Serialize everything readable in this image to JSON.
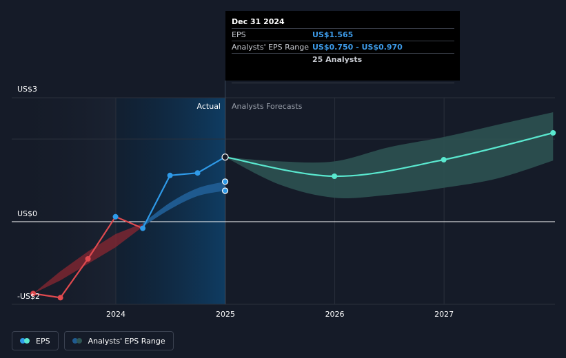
{
  "chart_data": {
    "type": "line",
    "y_axis": {
      "top_label": "US$3",
      "zero_label": "US$0",
      "bottom_label": "-US$2",
      "ylim": [
        -2,
        3
      ]
    },
    "x_ticks": [
      "2024",
      "2025",
      "2026",
      "2027"
    ],
    "region_labels": {
      "actual": "Actual",
      "forecast": "Analysts Forecasts"
    },
    "eps_actual_pre": {
      "name": "EPS",
      "points": [
        {
          "x": "2023-03-31",
          "y": -1.74
        },
        {
          "x": "2023-06-30",
          "y": -1.84
        },
        {
          "x": "2023-09-30",
          "y": -0.9
        },
        {
          "x": "2023-12-31",
          "y": 0.12
        },
        {
          "x": "2024-03-31",
          "y": -0.16
        }
      ]
    },
    "eps_actual_post": {
      "name": "EPS",
      "points": [
        {
          "x": "2024-03-31",
          "y": -0.16
        },
        {
          "x": "2024-06-30",
          "y": 1.12
        },
        {
          "x": "2024-09-30",
          "y": 1.18
        },
        {
          "x": "2024-12-31",
          "y": 1.565
        }
      ]
    },
    "analyst_range_past_red": {
      "x": [
        "2023-03-31",
        "2023-06-30",
        "2023-09-30",
        "2023-12-31",
        "2024-03-31"
      ],
      "low": [
        -1.74,
        -1.42,
        -1.02,
        -0.62,
        -0.12
      ],
      "high": [
        -1.74,
        -1.2,
        -0.72,
        -0.3,
        -0.04
      ]
    },
    "analyst_range_past_blue": {
      "x": [
        "2024-03-31",
        "2024-06-30",
        "2024-09-30",
        "2024-12-31"
      ],
      "low": [
        -0.12,
        0.3,
        0.62,
        0.75
      ],
      "high": [
        -0.04,
        0.46,
        0.81,
        0.97
      ]
    },
    "past_consensus_markers": [
      {
        "x": "2024-12-31",
        "y": 0.97
      },
      {
        "x": "2024-12-31",
        "y": 0.75
      }
    ],
    "forecast": {
      "name": "EPS",
      "points": [
        {
          "x": "2024-12-31",
          "y": 1.565
        },
        {
          "x": "2025-12-31",
          "y": 1.1
        },
        {
          "x": "2026-12-31",
          "y": 1.5
        },
        {
          "x": "2027-12-31",
          "y": 2.15
        }
      ]
    },
    "forecast_range": {
      "x": [
        "2024-12-31",
        "2025-06-30",
        "2025-12-31",
        "2026-06-30",
        "2026-12-31",
        "2027-06-30",
        "2027-12-31"
      ],
      "low": [
        1.565,
        0.9,
        0.58,
        0.65,
        0.82,
        1.05,
        1.48
      ],
      "high": [
        1.565,
        1.46,
        1.46,
        1.8,
        2.05,
        2.35,
        2.65
      ]
    },
    "x_range": [
      "2023-01-15",
      "2027-12-31"
    ],
    "grid": true,
    "colors": {
      "actual_region": "#0f3a5c",
      "eps_red": "#e04a4f",
      "eps_blue": "#2f9ae8",
      "range_red": "#8a2732",
      "range_blue": "#1f5a8f",
      "forecast_line": "#5ae8cf",
      "forecast_band": "#2e5554",
      "zero_line": "#ffffff",
      "grid": "#2a303c"
    }
  },
  "tooltip": {
    "date": "Dec 31 2024",
    "eps_label": "EPS",
    "eps_value": "US$1.565",
    "range_label": "Analysts' EPS Range",
    "range_value": "US$0.750 - US$0.970",
    "analysts": "25 Analysts"
  },
  "legend": {
    "eps": "EPS",
    "range": "Analysts' EPS Range",
    "eps_colors": [
      "#2f9ae8",
      "#5ae8cf"
    ],
    "range_colors": [
      "#1f5a8f",
      "#2e5554"
    ]
  }
}
